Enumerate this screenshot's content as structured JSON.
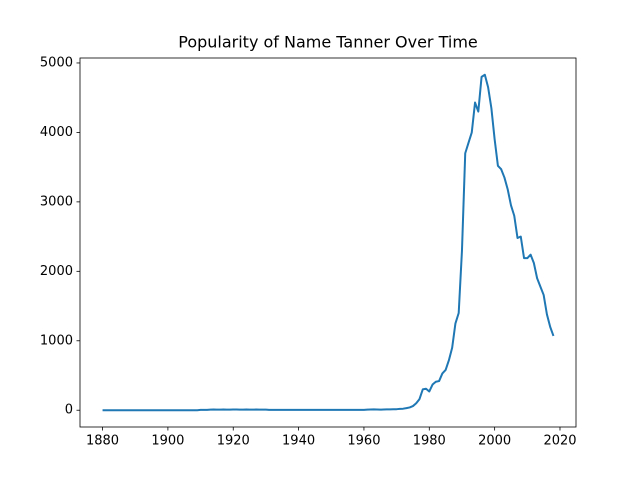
{
  "chart_data": {
    "type": "line",
    "title": "Popularity of Name Tanner Over Time",
    "x": [
      1880,
      1881,
      1882,
      1883,
      1884,
      1885,
      1886,
      1887,
      1888,
      1889,
      1890,
      1891,
      1892,
      1893,
      1894,
      1895,
      1896,
      1897,
      1898,
      1899,
      1900,
      1901,
      1902,
      1903,
      1904,
      1905,
      1906,
      1907,
      1908,
      1909,
      1910,
      1911,
      1912,
      1913,
      1914,
      1915,
      1916,
      1917,
      1918,
      1919,
      1920,
      1921,
      1922,
      1923,
      1924,
      1925,
      1926,
      1927,
      1928,
      1929,
      1930,
      1931,
      1932,
      1933,
      1934,
      1935,
      1936,
      1937,
      1938,
      1939,
      1940,
      1941,
      1942,
      1943,
      1944,
      1945,
      1946,
      1947,
      1948,
      1949,
      1950,
      1951,
      1952,
      1953,
      1954,
      1955,
      1956,
      1957,
      1958,
      1959,
      1960,
      1961,
      1962,
      1963,
      1964,
      1965,
      1966,
      1967,
      1968,
      1969,
      1970,
      1971,
      1972,
      1973,
      1974,
      1975,
      1976,
      1977,
      1978,
      1979,
      1980,
      1981,
      1982,
      1983,
      1984,
      1985,
      1986,
      1987,
      1988,
      1989,
      1990,
      1991,
      1992,
      1993,
      1994,
      1995,
      1996,
      1997,
      1998,
      1999,
      2000,
      2001,
      2002,
      2003,
      2004,
      2005,
      2006,
      2007,
      2008,
      2009,
      2010,
      2011,
      2012,
      2013,
      2014,
      2015,
      2016,
      2017,
      2018
    ],
    "values": [
      0,
      0,
      0,
      0,
      0,
      0,
      0,
      0,
      0,
      0,
      0,
      0,
      0,
      0,
      0,
      0,
      0,
      0,
      0,
      0,
      0,
      0,
      0,
      0,
      0,
      0,
      0,
      0,
      0,
      0,
      5,
      5,
      5,
      8,
      10,
      8,
      8,
      10,
      8,
      8,
      10,
      10,
      8,
      8,
      10,
      8,
      8,
      10,
      8,
      8,
      8,
      5,
      5,
      5,
      5,
      5,
      5,
      5,
      5,
      5,
      5,
      5,
      5,
      5,
      5,
      5,
      5,
      5,
      5,
      5,
      5,
      5,
      5,
      5,
      5,
      5,
      5,
      5,
      5,
      5,
      5,
      8,
      10,
      12,
      10,
      8,
      10,
      12,
      12,
      15,
      15,
      20,
      22,
      30,
      40,
      60,
      100,
      160,
      300,
      310,
      270,
      370,
      410,
      420,
      530,
      580,
      720,
      900,
      1250,
      1400,
      2300,
      3700,
      3850,
      4000,
      4430,
      4300,
      4800,
      4830,
      4650,
      4350,
      3900,
      3520,
      3470,
      3350,
      3180,
      2950,
      2800,
      2480,
      2500,
      2190,
      2190,
      2240,
      2120,
      1900,
      1780,
      1660,
      1380,
      1200,
      1070
    ],
    "color": "#1f77b4",
    "xlim": [
      1873.1,
      2024.9
    ],
    "ylim": [
      -241.5,
      5071.5
    ],
    "xticks": [
      1880,
      1900,
      1920,
      1940,
      1960,
      1980,
      2000,
      2020
    ],
    "yticks": [
      0,
      1000,
      2000,
      3000,
      4000,
      5000
    ]
  }
}
